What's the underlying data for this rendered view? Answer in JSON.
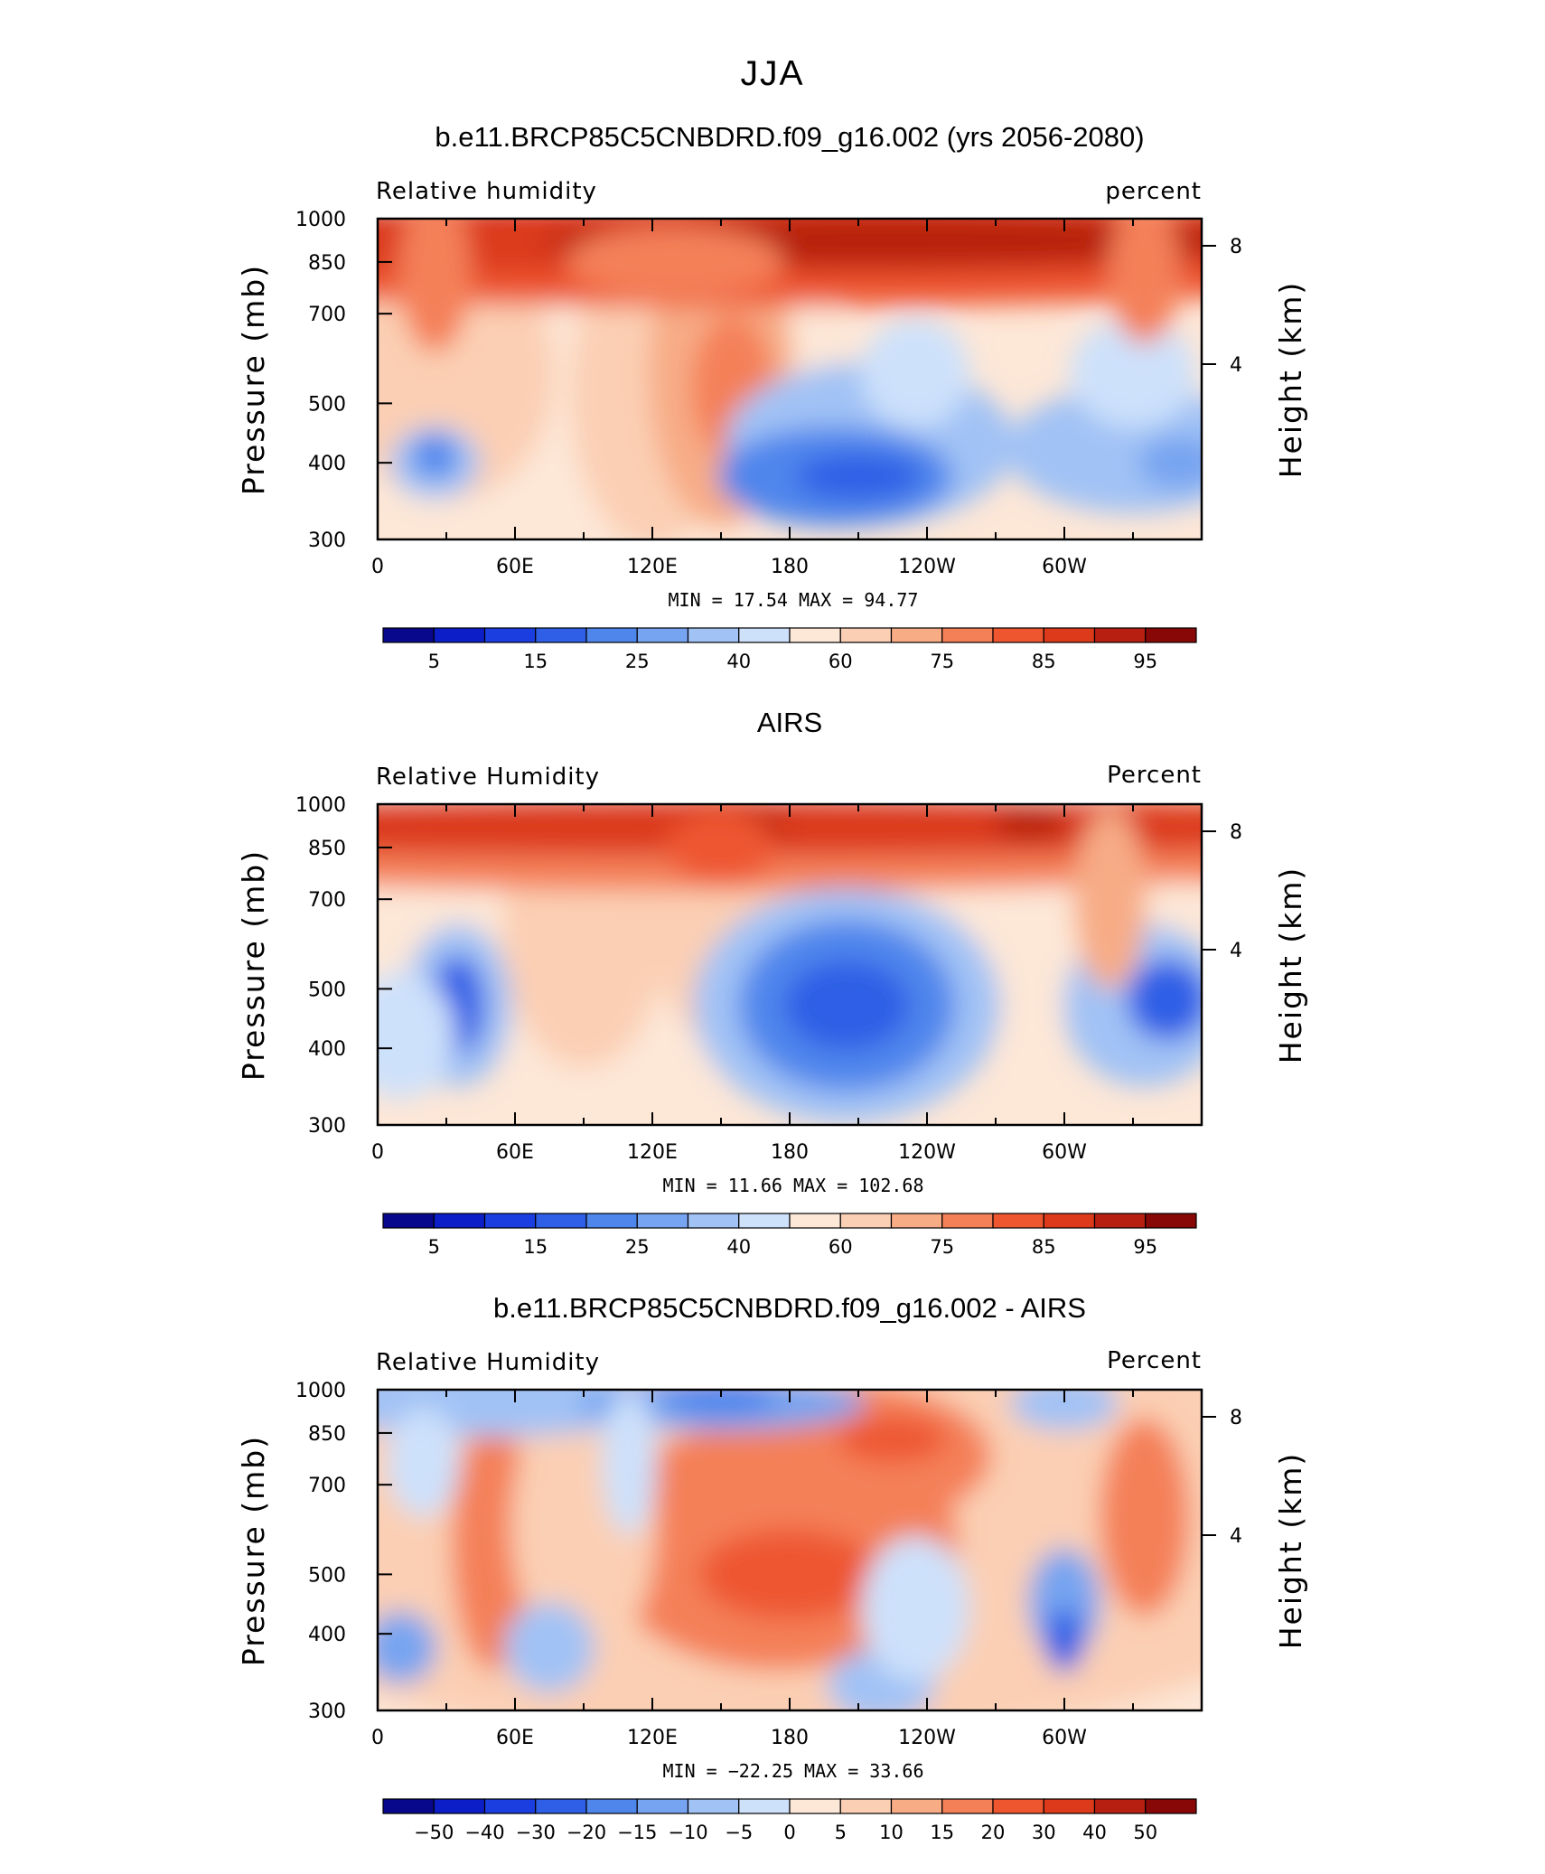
{
  "figure": {
    "title": "JJA"
  },
  "colors": {
    "abs": [
      "#08088c",
      "#0c1ec8",
      "#1a3ee0",
      "#2e5fe6",
      "#4f86ec",
      "#77a4f0",
      "#a1c2f5",
      "#cde1fb",
      "#fde7d7",
      "#fbcfb4",
      "#f7ac86",
      "#f48058",
      "#ee5630",
      "#dc3a1a",
      "#b72010",
      "#880808"
    ],
    "diff": [
      "#08088c",
      "#0c1ec8",
      "#1a3ee0",
      "#2e5fe6",
      "#4f86ec",
      "#77a4f0",
      "#a1c2f5",
      "#cde1fb",
      "#fde7d7",
      "#fbcfb4",
      "#f7ac86",
      "#f48058",
      "#ee5630",
      "#dc3a1a",
      "#b72010",
      "#880808"
    ],
    "land": "#000000"
  },
  "chart_data": [
    {
      "type": "heatmap",
      "title": "b.e11.BRCP85C5CNBDRD.f09_g16.002 (yrs 2056-2080)",
      "left_label": "Relative humidity",
      "right_label": "percent",
      "ylabel": "Pressure (mb)",
      "y2label": "Height (km)",
      "x_ticks": [
        "0",
        "60E",
        "120E",
        "180",
        "120W",
        "60W"
      ],
      "y_ticks": [
        "300",
        "400",
        "500",
        "700",
        "850",
        "1000"
      ],
      "y2_ticks": [
        "8",
        "4"
      ],
      "minmax": "MIN =   17.54   MAX =   94.77",
      "colorbar_labels": [
        "5",
        "15",
        "25",
        "40",
        "60",
        "75",
        "85",
        "95"
      ],
      "ylim": [
        1000,
        300
      ],
      "xlim": [
        0,
        360
      ],
      "value_range": [
        17.54,
        94.77
      ],
      "grid": false
    },
    {
      "type": "heatmap",
      "title": "AIRS",
      "left_label": "Relative Humidity",
      "right_label": "Percent",
      "ylabel": "Pressure (mb)",
      "y2label": "Height (km)",
      "x_ticks": [
        "0",
        "60E",
        "120E",
        "180",
        "120W",
        "60W"
      ],
      "y_ticks": [
        "300",
        "400",
        "500",
        "700",
        "850",
        "1000"
      ],
      "y2_ticks": [
        "8",
        "4"
      ],
      "minmax": "MIN =   11.66   MAX =  102.68",
      "colorbar_labels": [
        "5",
        "15",
        "25",
        "40",
        "60",
        "75",
        "85",
        "95"
      ],
      "ylim": [
        1000,
        300
      ],
      "xlim": [
        0,
        360
      ],
      "value_range": [
        11.66,
        102.68
      ],
      "grid": false
    },
    {
      "type": "heatmap",
      "title": "b.e11.BRCP85C5CNBDRD.f09_g16.002 - AIRS",
      "left_label": "Relative Humidity",
      "right_label": "Percent",
      "ylabel": "Pressure (mb)",
      "y2label": "Height (km)",
      "x_ticks": [
        "0",
        "60E",
        "120E",
        "180",
        "120W",
        "60W"
      ],
      "y_ticks": [
        "300",
        "400",
        "500",
        "700",
        "850",
        "1000"
      ],
      "y2_ticks": [
        "8",
        "4"
      ],
      "minmax": "MIN = −22.25   MAX =   33.66",
      "colorbar_labels": [
        "−50",
        "−40",
        "−30",
        "−20",
        "−15",
        "−10",
        "−5",
        "0",
        "5",
        "10",
        "15",
        "20",
        "30",
        "40",
        "50"
      ],
      "ylim": [
        1000,
        300
      ],
      "xlim": [
        0,
        360
      ],
      "value_range": [
        -22.25,
        33.66
      ],
      "grid": false
    }
  ]
}
